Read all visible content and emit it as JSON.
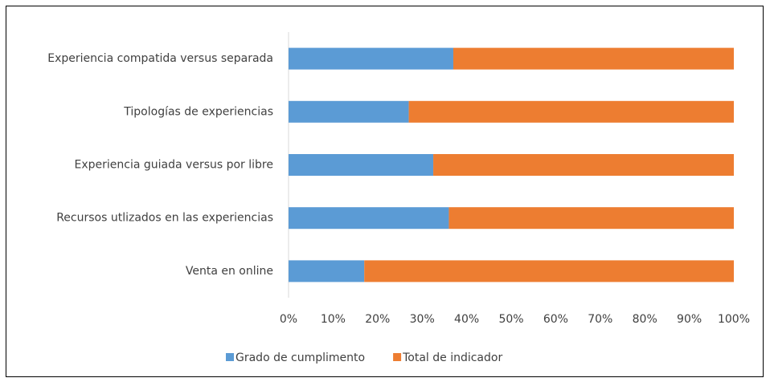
{
  "chart_data": {
    "type": "stacked_barh",
    "categories": [
      "Experiencia compatida versus separada",
      "Tipologías de experiencias",
      "Experiencia guiada versus por libre",
      "Recursos utlizados en las experiencias",
      "Venta en online"
    ],
    "series": [
      {
        "name": "Grado de cumplimento",
        "color": "#5b9bd5",
        "values": [
          37,
          27,
          32.5,
          36,
          17
        ]
      },
      {
        "name": "Total de indicador",
        "color": "#ed7d31",
        "values": [
          63,
          73,
          67.5,
          64,
          83
        ]
      }
    ],
    "xlim": [
      0,
      100
    ],
    "xticks": [
      {
        "value": 0,
        "label": "0%"
      },
      {
        "value": 10,
        "label": "10%"
      },
      {
        "value": 20,
        "label": "20%"
      },
      {
        "value": 30,
        "label": "30%"
      },
      {
        "value": 40,
        "label": "40%"
      },
      {
        "value": 50,
        "label": "50%"
      },
      {
        "value": 60,
        "label": "60%"
      },
      {
        "value": 70,
        "label": "70%"
      },
      {
        "value": 80,
        "label": "80%"
      },
      {
        "value": 90,
        "label": "90%"
      },
      {
        "value": 100,
        "label": "100%"
      }
    ],
    "legend": "bottom"
  }
}
